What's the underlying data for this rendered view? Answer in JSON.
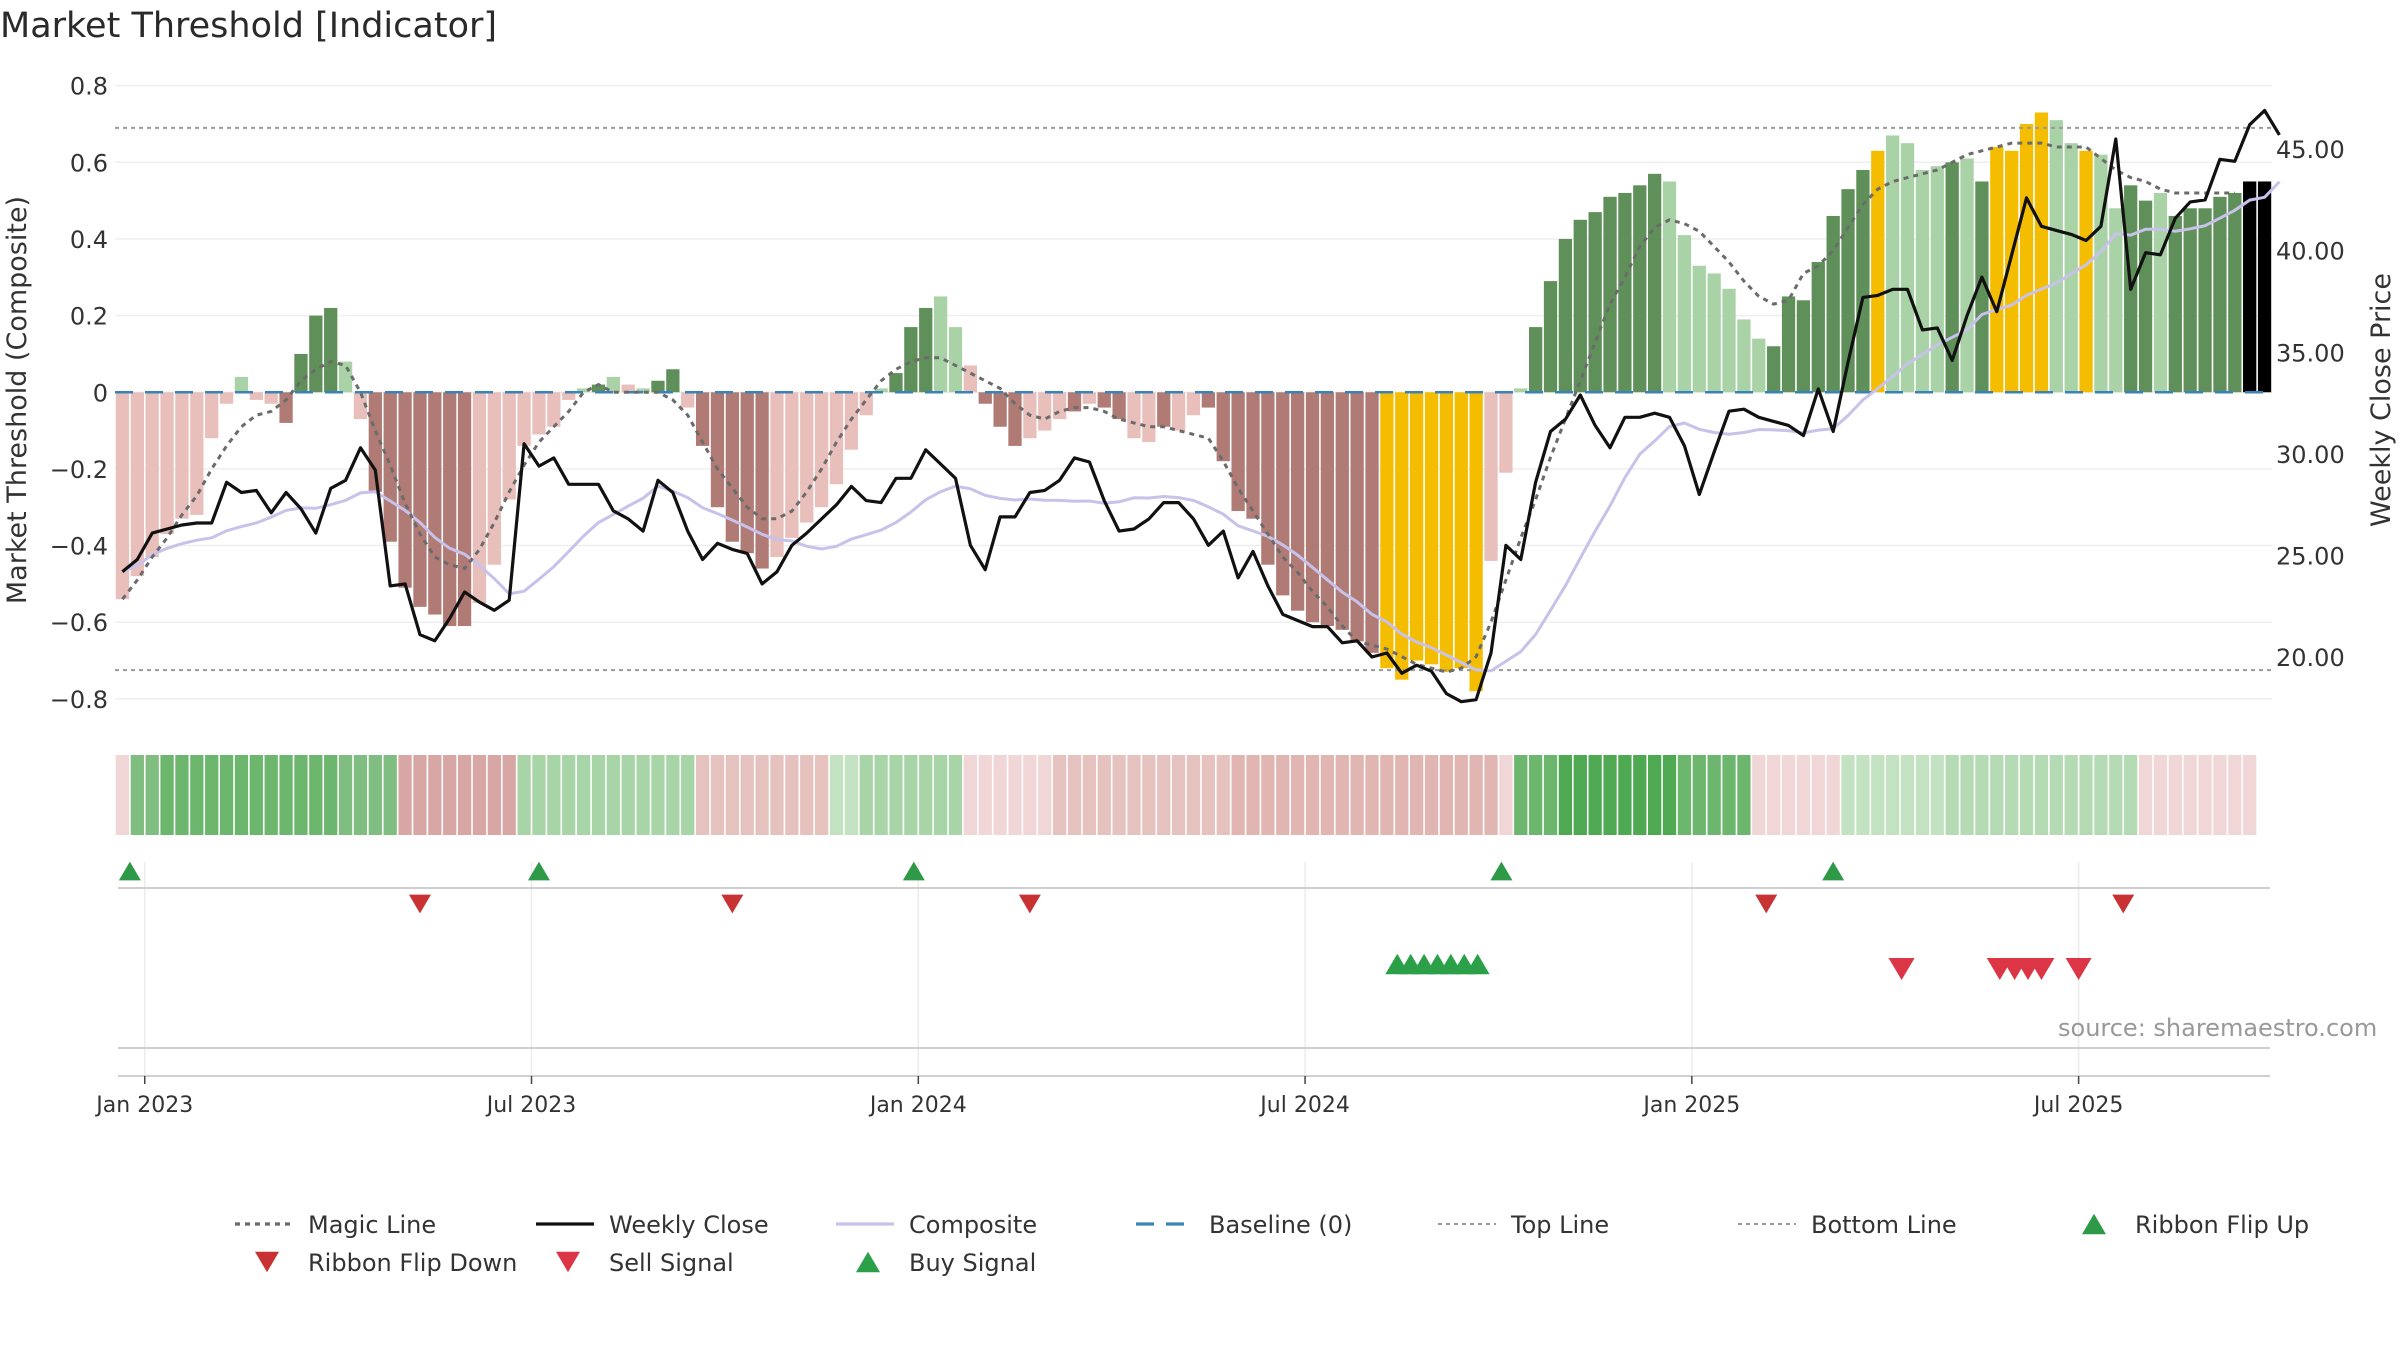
{
  "chart_data": {
    "type": "bar",
    "title": "Market Threshold [Indicator]",
    "source": "source: sharemaestro.com",
    "ylabel_left": "Market Threshold (Composite)",
    "ylabel_right": "Weekly Close Price",
    "ylim_left": [
      -0.85,
      0.82
    ],
    "ylim_right": [
      17.0,
      48.5
    ],
    "yticks_left": [
      {
        "value": 0.8,
        "label": "0.8"
      },
      {
        "value": 0.6,
        "label": "0.6"
      },
      {
        "value": 0.4,
        "label": "0.4"
      },
      {
        "value": 0.2,
        "label": "0.2"
      },
      {
        "value": 0,
        "label": "0"
      },
      {
        "value": -0.2,
        "label": "−0.2"
      },
      {
        "value": -0.4,
        "label": "−0.4"
      },
      {
        "value": -0.6,
        "label": "−0.6"
      },
      {
        "value": -0.8,
        "label": "−0.8"
      }
    ],
    "yticks_right": [
      {
        "value": 45,
        "label": "45.00"
      },
      {
        "value": 40,
        "label": "40.00"
      },
      {
        "value": 35,
        "label": "35.00"
      },
      {
        "value": 30,
        "label": "30.00"
      },
      {
        "value": 25,
        "label": "25.00"
      },
      {
        "value": 20,
        "label": "20.00"
      }
    ],
    "xticks": [
      {
        "week": 1.5,
        "label": "Jan 2023"
      },
      {
        "week": 27.5,
        "label": "Jul 2023"
      },
      {
        "week": 53.5,
        "label": "Jan 2024"
      },
      {
        "week": 79.5,
        "label": "Jul 2024"
      },
      {
        "week": 105.5,
        "label": "Jan 2025"
      },
      {
        "week": 131.5,
        "label": "Jul 2025"
      }
    ],
    "top_line": 0.69,
    "bottom_line": -0.725,
    "composite_bars": [
      -0.54,
      -0.48,
      -0.43,
      -0.37,
      -0.33,
      -0.32,
      -0.12,
      -0.03,
      0.04,
      -0.02,
      -0.03,
      -0.08,
      0.1,
      0.2,
      0.22,
      0.08,
      -0.07,
      -0.26,
      -0.39,
      -0.51,
      -0.56,
      -0.58,
      -0.61,
      -0.61,
      -0.55,
      -0.45,
      -0.28,
      -0.14,
      -0.11,
      -0.09,
      -0.02,
      0.01,
      0.02,
      0.04,
      0.02,
      0.01,
      0.03,
      0.06,
      -0.04,
      -0.14,
      -0.3,
      -0.39,
      -0.42,
      -0.46,
      -0.43,
      -0.38,
      -0.34,
      -0.3,
      -0.24,
      -0.15,
      -0.06,
      0.01,
      0.05,
      0.17,
      0.22,
      0.25,
      0.17,
      0.07,
      -0.03,
      -0.09,
      -0.14,
      -0.12,
      -0.1,
      -0.07,
      -0.05,
      -0.03,
      -0.04,
      -0.07,
      -0.12,
      -0.13,
      -0.09,
      -0.1,
      -0.06,
      -0.04,
      -0.18,
      -0.31,
      -0.33,
      -0.45,
      -0.53,
      -0.57,
      -0.6,
      -0.61,
      -0.62,
      -0.65,
      -0.68,
      -0.72,
      -0.75,
      -0.7,
      -0.71,
      -0.73,
      -0.72,
      -0.78,
      -0.44,
      -0.21,
      0.01,
      0.17,
      0.29,
      0.4,
      0.45,
      0.47,
      0.51,
      0.52,
      0.54,
      0.57,
      0.55,
      0.41,
      0.33,
      0.31,
      0.27,
      0.19,
      0.14,
      0.12,
      0.25,
      0.24,
      0.34,
      0.46,
      0.53,
      0.58,
      0.63,
      0.67,
      0.65,
      0.58,
      0.59,
      0.6,
      0.61,
      0.55,
      0.64,
      0.63,
      0.7,
      0.73,
      0.71,
      0.65,
      0.63,
      0.62,
      0.48,
      0.54,
      0.5,
      0.52,
      0.46,
      0.48,
      0.48,
      0.51,
      0.52,
      0.55,
      0.55
    ],
    "bar_colors": [
      "#E8BFBB",
      "#E8BFBB",
      "#E8BFBB",
      "#E8BFBB",
      "#E8BFBB",
      "#E8BFBB",
      "#E8BFBB",
      "#E8BFBB",
      "#A9D3A6",
      "#E8BFBB",
      "#E8BFBB",
      "#B07A75",
      "#5F905A",
      "#5F905A",
      "#5F905A",
      "#A9D3A6",
      "#E8BFBB",
      "#B07A75",
      "#B07A75",
      "#B07A75",
      "#B07A75",
      "#B07A75",
      "#B07A75",
      "#B07A75",
      "#E8BFBB",
      "#E8BFBB",
      "#E8BFBB",
      "#E8BFBB",
      "#E8BFBB",
      "#E8BFBB",
      "#E8BFBB",
      "#A9D3A6",
      "#5F905A",
      "#A9D3A6",
      "#E8BFBB",
      "#A9D3A6",
      "#5F905A",
      "#5F905A",
      "#E8BFBB",
      "#B07A75",
      "#B07A75",
      "#B07A75",
      "#B07A75",
      "#B07A75",
      "#E8BFBB",
      "#E8BFBB",
      "#E8BFBB",
      "#E8BFBB",
      "#E8BFBB",
      "#E8BFBB",
      "#E8BFBB",
      "#A9D3A6",
      "#5F905A",
      "#5F905A",
      "#5F905A",
      "#A9D3A6",
      "#A9D3A6",
      "#E8BFBB",
      "#B07A75",
      "#B07A75",
      "#B07A75",
      "#E8BFBB",
      "#E8BFBB",
      "#E8BFBB",
      "#B07A75",
      "#E8BFBB",
      "#B07A75",
      "#B07A75",
      "#E8BFBB",
      "#E8BFBB",
      "#B07A75",
      "#E8BFBB",
      "#E8BFBB",
      "#B07A75",
      "#B07A75",
      "#B07A75",
      "#B07A75",
      "#B07A75",
      "#B07A75",
      "#B07A75",
      "#B07A75",
      "#B07A75",
      "#B07A75",
      "#B07A75",
      "#B07A75",
      "#F5BD00",
      "#F5BD00",
      "#F5BD00",
      "#F5BD00",
      "#F5BD00",
      "#F5BD00",
      "#F5BD00",
      "#E8BFBB",
      "#E8BFBB",
      "#A9D3A6",
      "#5F905A",
      "#5F905A",
      "#5F905A",
      "#5F905A",
      "#5F905A",
      "#5F905A",
      "#5F905A",
      "#5F905A",
      "#5F905A",
      "#A9D3A6",
      "#A9D3A6",
      "#A9D3A6",
      "#A9D3A6",
      "#A9D3A6",
      "#A9D3A6",
      "#A9D3A6",
      "#5F905A",
      "#5F905A",
      "#5F905A",
      "#5F905A",
      "#5F905A",
      "#5F905A",
      "#5F905A",
      "#F5BD00",
      "#A9D3A6",
      "#A9D3A6",
      "#A9D3A6",
      "#A9D3A6",
      "#5F905A",
      "#A9D3A6",
      "#5F905A",
      "#F5BD00",
      "#F5BD00",
      "#F5BD00",
      "#F5BD00",
      "#A9D3A6",
      "#A9D3A6",
      "#F5BD00",
      "#A9D3A6",
      "#A9D3A6",
      "#5F905A",
      "#5F905A",
      "#A9D3A6",
      "#5F905A",
      "#5F905A",
      "#5F905A",
      "#5F905A",
      "#5F905A"
    ],
    "weekly_close": [
      24.2,
      24.8,
      26.1,
      26.3,
      26.5,
      26.6,
      26.6,
      28.6,
      28.1,
      28.2,
      27.1,
      28.1,
      27.3,
      26.1,
      28.3,
      28.7,
      30.3,
      29.2,
      23.5,
      23.6,
      21.1,
      20.8,
      21.9,
      23.2,
      22.7,
      22.3,
      22.8,
      30.5,
      29.4,
      29.8,
      28.5,
      28.5,
      28.5,
      27.2,
      26.8,
      26.2,
      28.7,
      28.1,
      26.2,
      24.8,
      25.6,
      25.3,
      25.1,
      23.6,
      24.2,
      25.5,
      26.1,
      26.8,
      27.5,
      28.4,
      27.7,
      27.6,
      28.8,
      28.8,
      30.2,
      29.5,
      28.8,
      25.5,
      24.3,
      26.9,
      26.9,
      28.1,
      28.2,
      28.7,
      29.8,
      29.6,
      27.7,
      26.2,
      26.3,
      26.8,
      27.6,
      27.6,
      26.8,
      25.5,
      26.2,
      23.9,
      25.2,
      23.5,
      22.1,
      21.8,
      21.5,
      21.5,
      20.7,
      20.8,
      20.0,
      20.2,
      19.2,
      19.6,
      19.3,
      18.2,
      17.8,
      17.9,
      20.2,
      25.5,
      24.8,
      28.6,
      31.1,
      31.7,
      32.9,
      31.4,
      30.3,
      31.8,
      31.8,
      32.0,
      31.8,
      30.4,
      28.0,
      30.1,
      32.1,
      32.2,
      31.8,
      31.6,
      31.4,
      30.9,
      33.2,
      31.1,
      34.5,
      37.7,
      37.8,
      38.1,
      38.1,
      36.1,
      36.2,
      34.6,
      36.8,
      38.7,
      37.0,
      39.8,
      42.6,
      41.2,
      41.0,
      40.8,
      40.5,
      41.2,
      45.5,
      38.1,
      39.9,
      39.8,
      41.6,
      42.4,
      42.5,
      44.5,
      44.4,
      46.2,
      46.9,
      45.7
    ],
    "magic_line": [
      -0.54,
      -0.49,
      -0.43,
      -0.38,
      -0.32,
      -0.27,
      -0.2,
      -0.14,
      -0.09,
      -0.06,
      -0.05,
      -0.02,
      0.03,
      0.06,
      0.08,
      0.07,
      0.0,
      -0.1,
      -0.19,
      -0.29,
      -0.37,
      -0.43,
      -0.45,
      -0.46,
      -0.41,
      -0.34,
      -0.26,
      -0.19,
      -0.13,
      -0.09,
      -0.05,
      0.0,
      0.02,
      0.0,
      0.0,
      0.0,
      0.0,
      -0.02,
      -0.06,
      -0.13,
      -0.2,
      -0.25,
      -0.3,
      -0.33,
      -0.33,
      -0.31,
      -0.26,
      -0.2,
      -0.13,
      -0.07,
      -0.02,
      0.03,
      0.06,
      0.08,
      0.09,
      0.09,
      0.07,
      0.05,
      0.03,
      0.01,
      -0.03,
      -0.06,
      -0.07,
      -0.05,
      -0.04,
      -0.04,
      -0.05,
      -0.07,
      -0.08,
      -0.09,
      -0.09,
      -0.1,
      -0.11,
      -0.12,
      -0.18,
      -0.25,
      -0.31,
      -0.37,
      -0.43,
      -0.47,
      -0.52,
      -0.56,
      -0.61,
      -0.65,
      -0.66,
      -0.67,
      -0.69,
      -0.71,
      -0.72,
      -0.73,
      -0.72,
      -0.69,
      -0.6,
      -0.49,
      -0.38,
      -0.28,
      -0.17,
      -0.07,
      0.03,
      0.13,
      0.23,
      0.3,
      0.38,
      0.43,
      0.45,
      0.44,
      0.42,
      0.38,
      0.34,
      0.29,
      0.25,
      0.23,
      0.24,
      0.31,
      0.33,
      0.37,
      0.43,
      0.49,
      0.53,
      0.55,
      0.56,
      0.57,
      0.58,
      0.6,
      0.62,
      0.63,
      0.64,
      0.65,
      0.65,
      0.65,
      0.64,
      0.64,
      0.64,
      0.61,
      0.58,
      0.56,
      0.55,
      0.53,
      0.52,
      0.52,
      0.52,
      0.52,
      0.52
    ],
    "ribbon": [
      "#F0D6D6",
      "#7FBE80",
      "#7FBE80",
      "#6CB66E",
      "#6CB66E",
      "#6CB66E",
      "#6CB66E",
      "#6CB66E",
      "#6CB66E",
      "#6CB66E",
      "#6CB66E",
      "#6CB66E",
      "#6CB66E",
      "#6CB66E",
      "#6CB66E",
      "#7FBE80",
      "#7FBE80",
      "#7FBE80",
      "#7FBE80",
      "#D8A7A5",
      "#D8A7A5",
      "#D8A7A5",
      "#D8A7A5",
      "#D8A7A5",
      "#D8A7A5",
      "#D8A7A5",
      "#D8A7A5",
      "#A8D5A8",
      "#A8D5A8",
      "#A8D5A8",
      "#A8D5A8",
      "#A8D5A8",
      "#A8D5A8",
      "#A8D5A8",
      "#A8D5A8",
      "#A8D5A8",
      "#A8D5A8",
      "#A8D5A8",
      "#A8D5A8",
      "#E6C2BF",
      "#E6C2BF",
      "#E6C2BF",
      "#E6C2BF",
      "#E6C2BF",
      "#E6C2BF",
      "#E6C2BF",
      "#E6C2BF",
      "#E6C2BF",
      "#C2E2C2",
      "#C2E2C2",
      "#A8D5A8",
      "#A8D5A8",
      "#A8D5A8",
      "#A8D5A8",
      "#A8D5A8",
      "#A8D5A8",
      "#A8D5A8",
      "#F0D6D6",
      "#F0D6D6",
      "#F0D6D6",
      "#F0D6D6",
      "#F0D6D6",
      "#F0D6D6",
      "#E6C2BF",
      "#E6C2BF",
      "#E6C2BF",
      "#E6C2BF",
      "#E6C2BF",
      "#E6C2BF",
      "#E6C2BF",
      "#E6C2BF",
      "#E6C2BF",
      "#E6C2BF",
      "#E6C2BF",
      "#E6C2BF",
      "#E0B5B2",
      "#E0B5B2",
      "#E0B5B2",
      "#E0B5B2",
      "#E0B5B2",
      "#E0B5B2",
      "#E0B5B2",
      "#E0B5B2",
      "#E0B5B2",
      "#E0B5B2",
      "#E0B5B2",
      "#E0B5B2",
      "#E0B5B2",
      "#E0B5B2",
      "#E0B5B2",
      "#E0B5B2",
      "#E0B5B2",
      "#E0B5B2",
      "#F0D6D6",
      "#6CB66E",
      "#6CB66E",
      "#6CB66E",
      "#4FA852",
      "#4FA852",
      "#4FA852",
      "#4FA852",
      "#4FA852",
      "#4FA852",
      "#4FA852",
      "#4FA852",
      "#6CB66E",
      "#6CB66E",
      "#6CB66E",
      "#6CB66E",
      "#6CB66E",
      "#F0D6D6",
      "#F0D6D6",
      "#F0D6D6",
      "#F0D6D6",
      "#F0D6D6",
      "#F0D6D6",
      "#C2E2C2",
      "#C2E2C2",
      "#C2E2C2",
      "#C2E2C2",
      "#C2E2C2",
      "#C2E2C2",
      "#C2E2C2",
      "#B4DBB4",
      "#B4DBB4",
      "#B4DBB4",
      "#B4DBB4",
      "#B4DBB4",
      "#B4DBB4",
      "#B4DBB4",
      "#B4DBB4",
      "#B4DBB4",
      "#B4DBB4",
      "#B4DBB4",
      "#B4DBB4",
      "#B4DBB4",
      "#F0D6D6",
      "#F0D6D6",
      "#F0D6D6",
      "#F0D6D6",
      "#F0D6D6",
      "#F0D6D6",
      "#F0D6D6",
      "#F0D6D6"
    ],
    "ribbon_flip_up_weeks": [
      0.5,
      28,
      53.2,
      92.7,
      115
    ],
    "ribbon_flip_down_weeks": [
      20,
      41,
      61,
      110.5,
      134.5
    ],
    "buy_signal_weeks": [
      85.7,
      86.6,
      87.5,
      88.4,
      89.3,
      90.2,
      91.1
    ],
    "sell_signal_weeks": [
      119.6,
      126.2,
      127.2,
      128.1,
      129.0,
      131.5
    ],
    "legend": [
      {
        "label": "Magic Line",
        "kind": "dotted",
        "color": "#6b6b6b"
      },
      {
        "label": "Weekly Close",
        "kind": "solid",
        "color": "#111111"
      },
      {
        "label": "Composite",
        "kind": "solid",
        "color": "#c8c2ea"
      },
      {
        "label": "Baseline (0)",
        "kind": "dashed",
        "color": "#3b82b6"
      },
      {
        "label": "Top Line",
        "kind": "dotted-thin",
        "color": "#9a9a9a"
      },
      {
        "label": "Bottom Line",
        "kind": "dotted-thin",
        "color": "#9a9a9a"
      },
      {
        "label": "Ribbon Flip Up",
        "kind": "tri-up",
        "color": "#2e9a48"
      },
      {
        "label": "Ribbon Flip Down",
        "kind": "tri-down",
        "color": "#c83232"
      },
      {
        "label": "Sell Signal",
        "kind": "tri-down",
        "color": "#dc3545"
      },
      {
        "label": "Buy Signal",
        "kind": "tri-up",
        "color": "#2ca048"
      }
    ]
  }
}
